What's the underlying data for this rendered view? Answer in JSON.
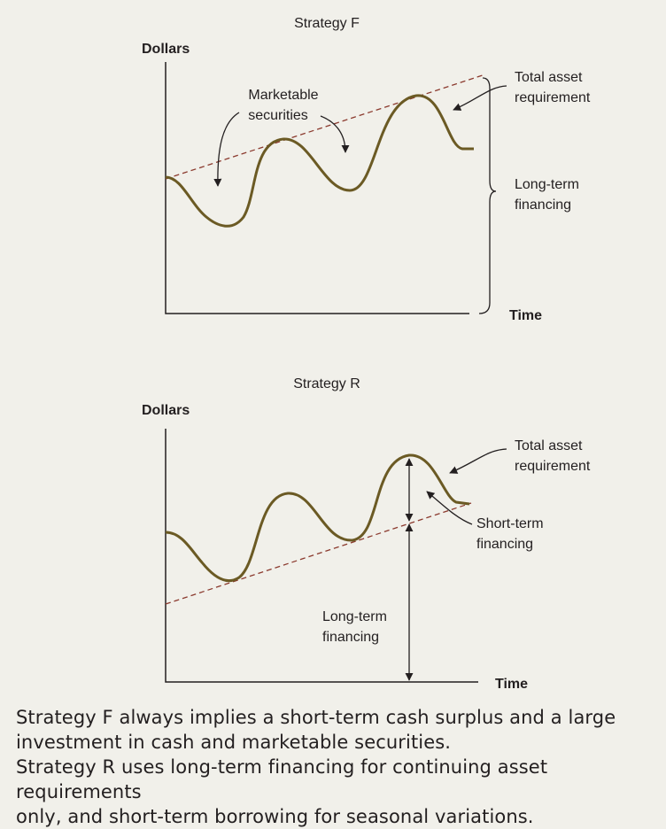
{
  "strategy_f": {
    "title": "Strategy F",
    "y_axis_label": "Dollars",
    "x_axis_label": "Time",
    "labels": {
      "marketable_line1": "Marketable",
      "marketable_line2": "securities",
      "total_line1": "Total asset",
      "total_line2": "requirement",
      "longterm_line1": "Long-term",
      "longterm_line2": "financing"
    }
  },
  "strategy_r": {
    "title": "Strategy R",
    "y_axis_label": "Dollars",
    "x_axis_label": "Time",
    "labels": {
      "total_line1": "Total asset",
      "total_line2": "requirement",
      "shortterm_line1": "Short-term",
      "shortterm_line2": "financing",
      "longterm_line1": "Long-term",
      "longterm_line2": "financing"
    }
  },
  "colors": {
    "curve": "#6b5a24",
    "trend_line": "#8b3a2e",
    "axis": "#231f20",
    "background": "#f1f0ea"
  },
  "caption": {
    "line1": "Strategy F always implies a short-term cash surplus and a large",
    "line2": "investment in cash and marketable securities.",
    "line3": "Strategy R uses long-term financing for continuing asset requirements",
    "line4": "only, and short-term borrowing for seasonal variations."
  }
}
